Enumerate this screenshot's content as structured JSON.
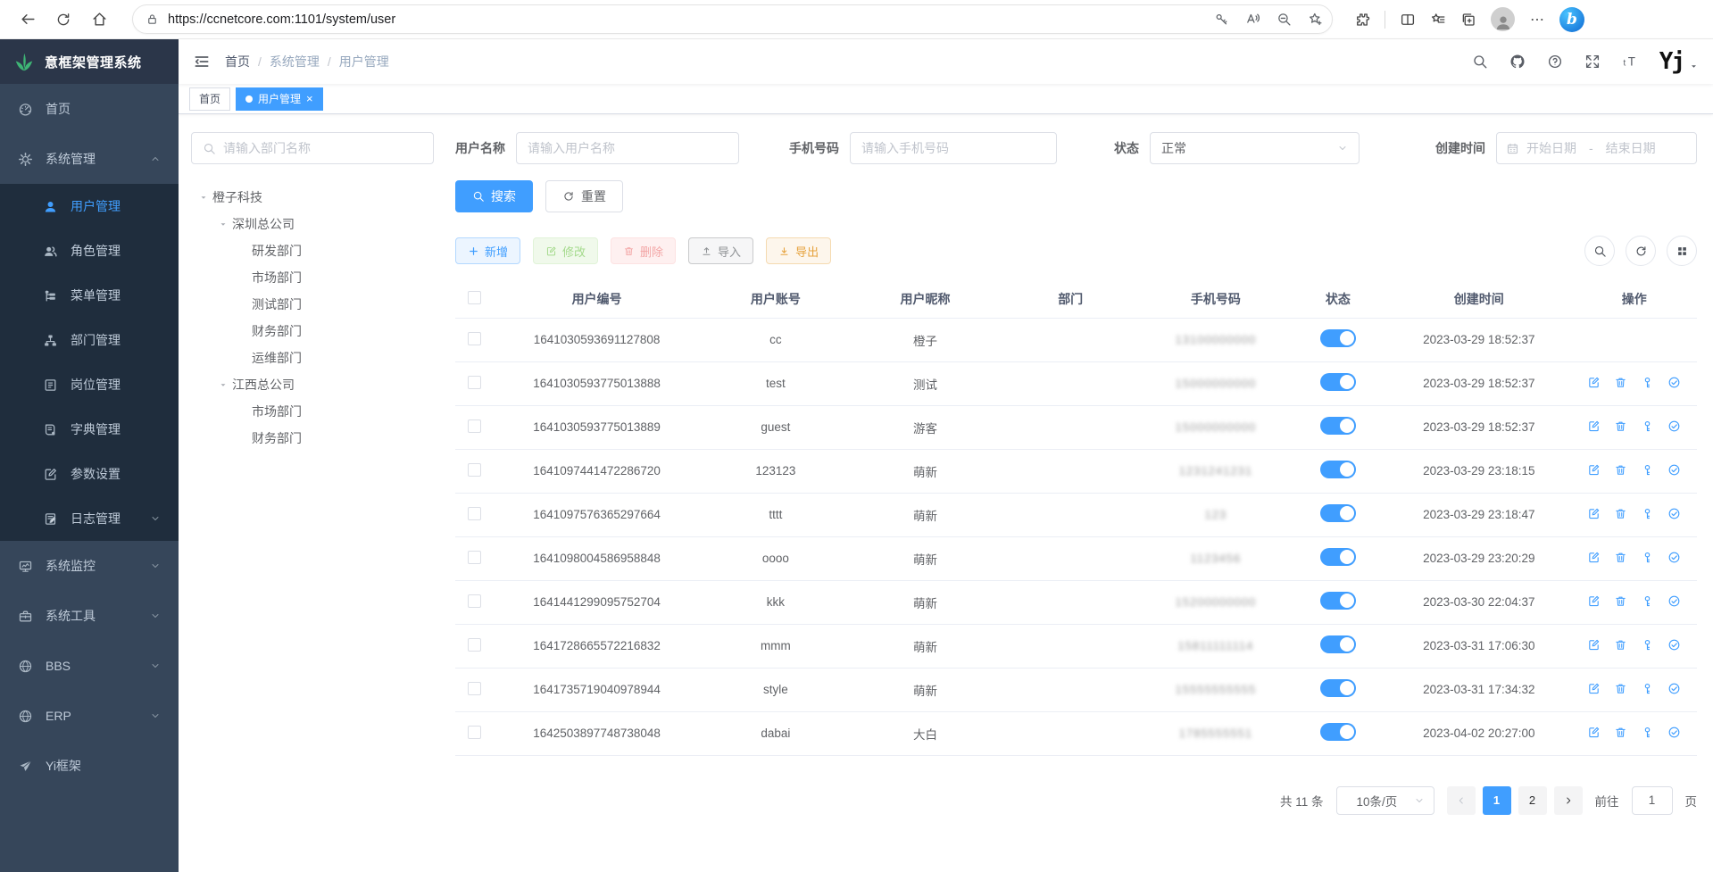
{
  "browser": {
    "url": "https://ccnetcore.com:1101/system/user"
  },
  "app": {
    "logo_title": "意框架管理系统",
    "breadcrumb": {
      "items": [
        "首页",
        "系统管理",
        "用户管理"
      ],
      "separator": "/"
    },
    "tabs": [
      {
        "label": "首页",
        "active": false,
        "closable": false
      },
      {
        "label": "用户管理",
        "active": true,
        "closable": true
      }
    ],
    "sidebar": {
      "items": [
        {
          "key": "home",
          "label": "首页",
          "icon": "dashboard-icon",
          "level": "top"
        },
        {
          "key": "system",
          "label": "系统管理",
          "icon": "gear-icon",
          "level": "top",
          "arrow": "up"
        },
        {
          "key": "users",
          "label": "用户管理",
          "icon": "user-icon",
          "level": "sub",
          "active": true
        },
        {
          "key": "roles",
          "label": "角色管理",
          "icon": "users-icon",
          "level": "sub"
        },
        {
          "key": "menus",
          "label": "菜单管理",
          "icon": "menu-tree-icon",
          "level": "sub"
        },
        {
          "key": "departments",
          "label": "部门管理",
          "icon": "org-icon",
          "level": "sub"
        },
        {
          "key": "posts",
          "label": "岗位管理",
          "icon": "badge-icon",
          "level": "sub"
        },
        {
          "key": "dicts",
          "label": "字典管理",
          "icon": "book-icon",
          "level": "sub"
        },
        {
          "key": "params",
          "label": "参数设置",
          "icon": "edit-square-icon",
          "level": "sub"
        },
        {
          "key": "logs",
          "label": "日志管理",
          "icon": "log-icon",
          "level": "sub",
          "arrow": "down"
        },
        {
          "key": "monitor",
          "label": "系统监控",
          "icon": "monitor-icon",
          "level": "top",
          "arrow": "down"
        },
        {
          "key": "tools",
          "label": "系统工具",
          "icon": "toolbox-icon",
          "level": "top",
          "arrow": "down"
        },
        {
          "key": "bbs",
          "label": "BBS",
          "icon": "globe-icon",
          "level": "top",
          "arrow": "down"
        },
        {
          "key": "erp",
          "label": "ERP",
          "icon": "globe-icon",
          "level": "top",
          "arrow": "down"
        },
        {
          "key": "yi-framework",
          "label": "Yi框架",
          "icon": "paper-plane-icon",
          "level": "top"
        }
      ]
    },
    "filters": {
      "dept_search_placeholder": "请输入部门名称",
      "username": {
        "label": "用户名称",
        "placeholder": "请输入用户名称",
        "value": ""
      },
      "phone": {
        "label": "手机号码",
        "placeholder": "请输入手机号码",
        "value": ""
      },
      "status": {
        "label": "状态",
        "value": "正常"
      },
      "created": {
        "label": "创建时间",
        "start_placeholder": "开始日期",
        "separator": "-",
        "end_placeholder": "结束日期"
      }
    },
    "tree": {
      "nodes": [
        {
          "label": "橙子科技",
          "depth": 0,
          "expandable": true
        },
        {
          "label": "深圳总公司",
          "depth": 1,
          "expandable": true
        },
        {
          "label": "研发部门",
          "depth": 2,
          "expandable": false
        },
        {
          "label": "市场部门",
          "depth": 2,
          "expandable": false
        },
        {
          "label": "测试部门",
          "depth": 2,
          "expandable": false
        },
        {
          "label": "财务部门",
          "depth": 2,
          "expandable": false
        },
        {
          "label": "运维部门",
          "depth": 2,
          "expandable": false
        },
        {
          "label": "江西总公司",
          "depth": 1,
          "expandable": true
        },
        {
          "label": "市场部门",
          "depth": 2,
          "expandable": false
        },
        {
          "label": "财务部门",
          "depth": 2,
          "expandable": false
        }
      ]
    },
    "actions": {
      "search": "搜索",
      "reset": "重置",
      "add": "新增",
      "edit": "修改",
      "delete": "删除",
      "import": "导入",
      "export": "导出"
    },
    "table": {
      "headers": [
        "用户编号",
        "用户账号",
        "用户昵称",
        "部门",
        "手机号码",
        "状态",
        "创建时间",
        "操作"
      ],
      "rows": [
        {
          "id": "1641030593691127808",
          "account": "cc",
          "nickname": "橙子",
          "dept": "",
          "phone": "13100000000",
          "phone_blurred": true,
          "status_on": true,
          "created": "2023-03-29 18:52:37",
          "actions": false
        },
        {
          "id": "1641030593775013888",
          "account": "test",
          "nickname": "测试",
          "dept": "",
          "phone": "15000000000",
          "phone_blurred": true,
          "status_on": true,
          "created": "2023-03-29 18:52:37",
          "actions": true
        },
        {
          "id": "1641030593775013889",
          "account": "guest",
          "nickname": "游客",
          "dept": "",
          "phone": "15000000000",
          "phone_blurred": true,
          "status_on": true,
          "created": "2023-03-29 18:52:37",
          "actions": true
        },
        {
          "id": "1641097441472286720",
          "account": "123123",
          "nickname": "萌新",
          "dept": "",
          "phone": "1231241231",
          "phone_blurred": true,
          "status_on": true,
          "created": "2023-03-29 23:18:15",
          "actions": true
        },
        {
          "id": "1641097576365297664",
          "account": "tttt",
          "nickname": "萌新",
          "dept": "",
          "phone": "123",
          "phone_blurred": true,
          "status_on": true,
          "created": "2023-03-29 23:18:47",
          "actions": true
        },
        {
          "id": "1641098004586958848",
          "account": "oooo",
          "nickname": "萌新",
          "dept": "",
          "phone": "1123456",
          "phone_blurred": true,
          "status_on": true,
          "created": "2023-03-29 23:20:29",
          "actions": true
        },
        {
          "id": "1641441299095752704",
          "account": "kkk",
          "nickname": "萌新",
          "dept": "",
          "phone": "15200000000",
          "phone_blurred": true,
          "status_on": true,
          "created": "2023-03-30 22:04:37",
          "actions": true
        },
        {
          "id": "1641728665572216832",
          "account": "mmm",
          "nickname": "萌新",
          "dept": "",
          "phone": "15811111114",
          "phone_blurred": true,
          "status_on": true,
          "created": "2023-03-31 17:06:30",
          "actions": true
        },
        {
          "id": "1641735719040978944",
          "account": "style",
          "nickname": "萌新",
          "dept": "",
          "phone": "15555555555",
          "phone_blurred": true,
          "status_on": true,
          "created": "2023-03-31 17:34:32",
          "actions": true
        },
        {
          "id": "1642503897748738048",
          "account": "dabai",
          "nickname": "大白",
          "dept": "",
          "phone": "1785555551",
          "phone_blurred": true,
          "status_on": true,
          "created": "2023-04-02 20:27:00",
          "actions": true
        }
      ]
    },
    "pagination": {
      "total": "共 11 条",
      "page_size": "10条/页",
      "pages": [
        "1",
        "2"
      ],
      "active_page": "1",
      "jump_label": "前往",
      "jump_value": "1",
      "jump_suffix": "页"
    }
  }
}
